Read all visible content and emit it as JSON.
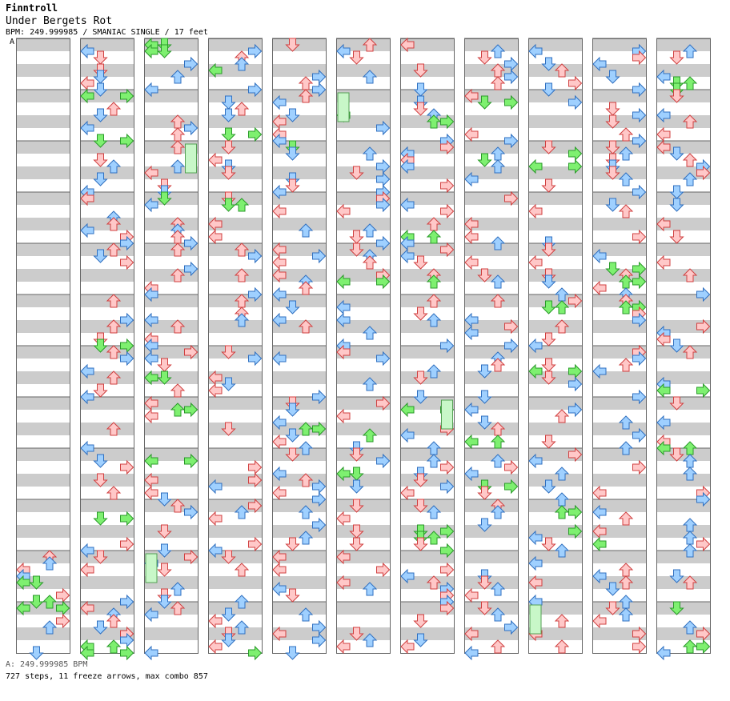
{
  "header": {
    "artist": "Finntroll",
    "title": "Under Bergets Rot",
    "info": "BPM: 249.999985 / SMANIAC SINGLE / 17 feet",
    "bpm_marker": "A"
  },
  "footer": {
    "bpm_legend": "A: 249.999985 BPM",
    "stats": "727 steps, 11 freeze arrows, max combo 857"
  },
  "colors": {
    "stripe": "#cccccc",
    "border": "#666666",
    "red_fill": "#ffc8c8",
    "red_stroke": "#d04040",
    "blue_fill": "#9fd0ff",
    "blue_stroke": "#3070c0",
    "green_fill": "#7ef070",
    "green_stroke": "#2a9a2a",
    "freeze_fill": "#c8f7c8",
    "freeze_stroke": "#55a055"
  },
  "chart": {
    "columns": 11,
    "measures_per_column": 12,
    "lanes": [
      "left",
      "down",
      "up",
      "right"
    ],
    "first_column_start_measure": 10
  }
}
